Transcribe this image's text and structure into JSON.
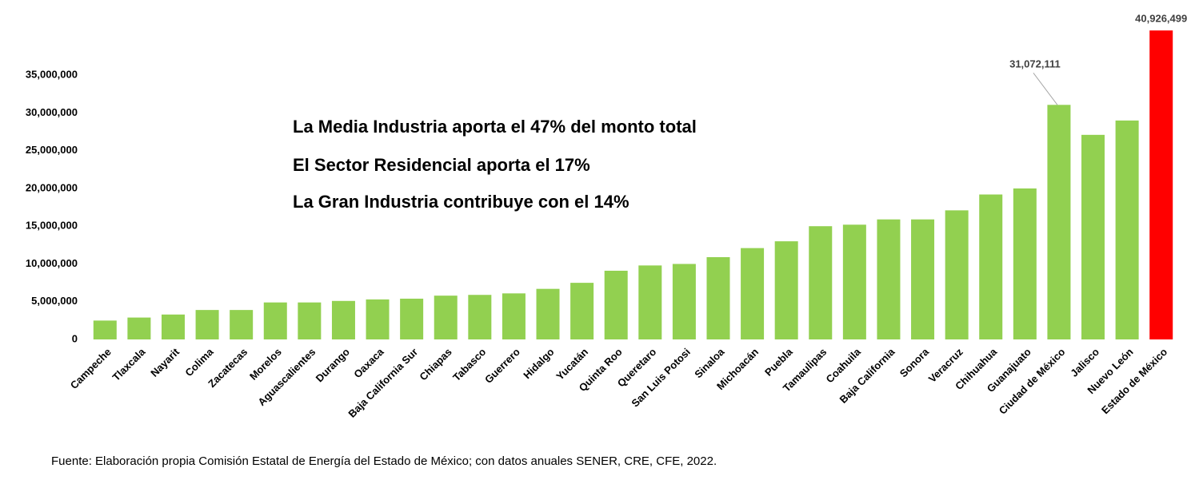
{
  "chart_data": {
    "type": "bar",
    "categories": [
      "Campeche",
      "Tlaxcala",
      "Nayarit",
      "Colima",
      "Zacatecas",
      "Morelos",
      "Aguascalientes",
      "Durango",
      "Oaxaca",
      "Baja California Sur",
      "Chiapas",
      "Tabasco",
      "Guerrero",
      "Hidalgo",
      "Yucatán",
      "Quinta Roo",
      "Queretaro",
      "San Luis Potosi",
      "Sinaloa",
      "Michoacán",
      "Puebla",
      "Tamaulipas",
      "Coahuila",
      "Baja California",
      "Sonora",
      "Veracruz",
      "Chihuahua",
      "Guanajuato",
      "Ciudad de México",
      "Jalisco",
      "Nuevo León",
      "Estado de México"
    ],
    "values": [
      2500000,
      2900000,
      3300000,
      3900000,
      3900000,
      4900000,
      4900000,
      5100000,
      5300000,
      5400000,
      5800000,
      5900000,
      6100000,
      6700000,
      7500000,
      9100000,
      9800000,
      10000000,
      10900000,
      12100000,
      13000000,
      15000000,
      15200000,
      15900000,
      15900000,
      17100000,
      19200000,
      20000000,
      31072111,
      27100000,
      29000000,
      40926499
    ],
    "value_labels": [
      null,
      null,
      null,
      null,
      null,
      null,
      null,
      null,
      null,
      null,
      null,
      null,
      null,
      null,
      null,
      null,
      null,
      null,
      null,
      null,
      null,
      null,
      null,
      null,
      null,
      null,
      null,
      null,
      "31,072,111",
      null,
      null,
      "40,926,499"
    ],
    "colors": [
      "#92d050",
      "#92d050",
      "#92d050",
      "#92d050",
      "#92d050",
      "#92d050",
      "#92d050",
      "#92d050",
      "#92d050",
      "#92d050",
      "#92d050",
      "#92d050",
      "#92d050",
      "#92d050",
      "#92d050",
      "#92d050",
      "#92d050",
      "#92d050",
      "#92d050",
      "#92d050",
      "#92d050",
      "#92d050",
      "#92d050",
      "#92d050",
      "#92d050",
      "#92d050",
      "#92d050",
      "#92d050",
      "#92d050",
      "#92d050",
      "#92d050",
      "#ff0000"
    ],
    "ylim": [
      0,
      42000000
    ],
    "yticks": [
      0,
      {
        "value": 5000000,
        "label": "5,000,000"
      },
      {
        "value": 10000000,
        "label": "10,000,000"
      },
      {
        "value": 15000000,
        "label": "15,000,000"
      },
      {
        "value": 20000000,
        "label": "20,000,000"
      },
      {
        "value": 25000000,
        "label": "25,000,000"
      },
      {
        "value": 30000000,
        "label": "30,000,000"
      },
      {
        "value": 35000000,
        "label": "35,000,000"
      }
    ],
    "grid": false,
    "annotations": [
      "La Media Industria aporta el 47% del monto total",
      "El Sector Residencial aporta el 17%",
      "La Gran Industria contribuye con el  14%"
    ],
    "source": "Fuente: Elaboración propia Comisión Estatal de Energía del Estado de México; con  datos anuales SENER, CRE, CFE, 2022."
  }
}
